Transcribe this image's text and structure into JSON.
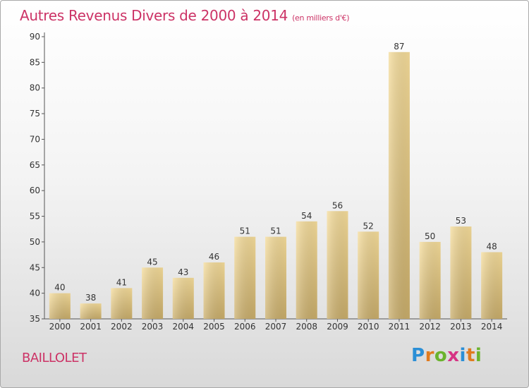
{
  "title": "Autres Revenus Divers de 2000 à 2014",
  "title_unit": "(en milliers d'€)",
  "commune": "BAILLOLET",
  "logo": {
    "text": "Proxiti",
    "letter_colors": [
      "#2b8fd6",
      "#e07b1f",
      "#6bb32e",
      "#d63384",
      "#2b8fd6",
      "#e07b1f",
      "#6bb32e"
    ]
  },
  "colors": {
    "title": "#cc3366",
    "bar_light": "#f5dc9a",
    "bar_dark": "#c9ad6a"
  },
  "chart_data": {
    "type": "bar",
    "categories": [
      "2000",
      "2001",
      "2002",
      "2003",
      "2004",
      "2005",
      "2006",
      "2007",
      "2008",
      "2009",
      "2010",
      "2011",
      "2012",
      "2013",
      "2014"
    ],
    "values": [
      40,
      38,
      41,
      45,
      43,
      46,
      51,
      51,
      54,
      56,
      52,
      87,
      50,
      53,
      48
    ],
    "ylim": [
      35,
      90
    ],
    "yticks": [
      35,
      40,
      45,
      50,
      55,
      60,
      65,
      70,
      75,
      80,
      85,
      90
    ],
    "grid": false,
    "legend": "none"
  }
}
